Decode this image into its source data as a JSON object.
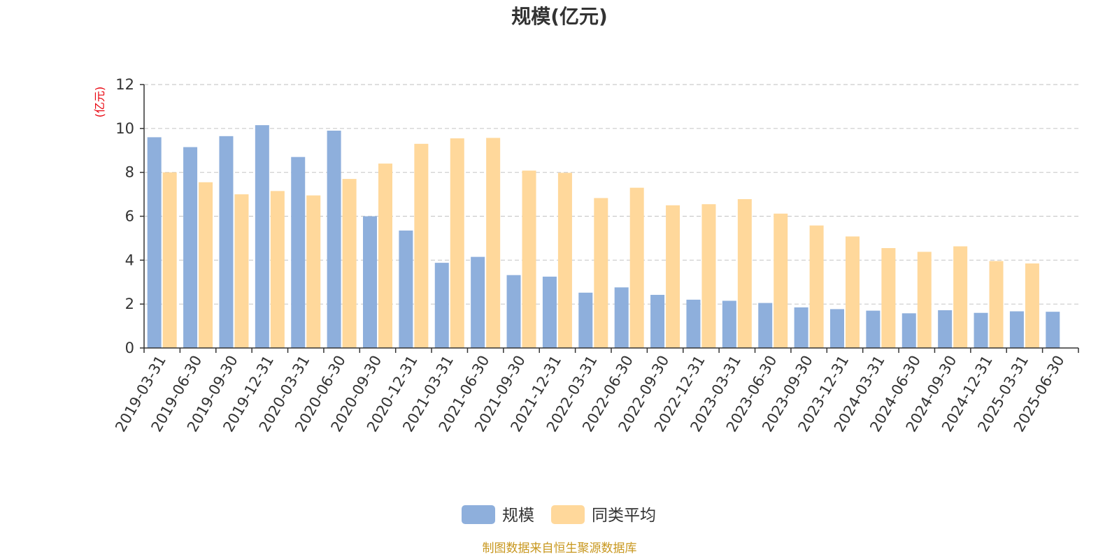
{
  "chart_data": {
    "type": "bar",
    "title": "规模(亿元)",
    "ylabel": "(亿元)",
    "xlabel": "",
    "ylim": [
      0,
      12
    ],
    "yticks": [
      0,
      2,
      4,
      6,
      8,
      10,
      12
    ],
    "grid": true,
    "legend_position": "bottom-center",
    "categories": [
      "2019-03-31",
      "2019-06-30",
      "2019-09-30",
      "2019-12-31",
      "2020-03-31",
      "2020-06-30",
      "2020-09-30",
      "2020-12-31",
      "2021-03-31",
      "2021-06-30",
      "2021-09-30",
      "2021-12-31",
      "2022-03-31",
      "2022-06-30",
      "2022-09-30",
      "2022-12-31",
      "2023-03-31",
      "2023-06-30",
      "2023-09-30",
      "2023-12-31",
      "2024-03-31",
      "2024-06-30",
      "2024-09-30",
      "2024-12-31",
      "2025-03-31",
      "2025-06-30"
    ],
    "series": [
      {
        "name": "规模",
        "color": "#8eafdc",
        "values": [
          9.6,
          9.15,
          9.65,
          10.15,
          8.7,
          9.9,
          6.0,
          5.35,
          3.88,
          4.15,
          3.32,
          3.25,
          2.52,
          2.76,
          2.42,
          2.2,
          2.15,
          2.05,
          1.85,
          1.77,
          1.7,
          1.58,
          1.72,
          1.6,
          1.67,
          1.65
        ]
      },
      {
        "name": "同类平均",
        "color": "#ffd89b",
        "values": [
          8.0,
          7.55,
          7.0,
          7.15,
          6.95,
          7.7,
          8.4,
          9.3,
          9.55,
          9.57,
          8.08,
          7.98,
          6.83,
          7.3,
          6.5,
          6.55,
          6.78,
          6.12,
          5.58,
          5.08,
          4.55,
          4.38,
          4.63,
          3.96,
          3.85,
          null
        ]
      }
    ],
    "source_note": "制图数据来自恒生聚源数据库"
  }
}
